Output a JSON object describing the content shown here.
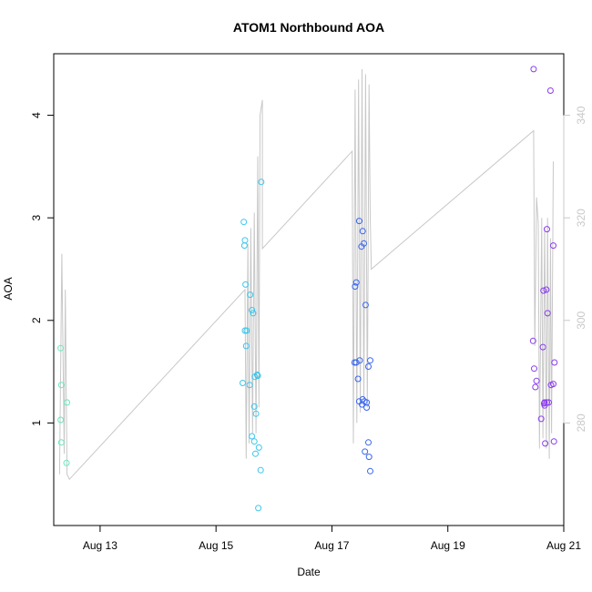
{
  "chart_data": {
    "type": "scatter",
    "title": "ATOM1 Northbound AOA",
    "xlabel": "Date",
    "ylabel": "AOA",
    "x_range_days": [
      12.2,
      21.0
    ],
    "y_range": [
      0.0,
      4.6
    ],
    "y2_range": [
      260,
      352
    ],
    "x_ticks": [
      {
        "value": 13,
        "label": "Aug 13"
      },
      {
        "value": 15,
        "label": "Aug 15"
      },
      {
        "value": 17,
        "label": "Aug 17"
      },
      {
        "value": 19,
        "label": "Aug 19"
      },
      {
        "value": 21,
        "label": "Aug 21"
      }
    ],
    "y_ticks": [
      {
        "value": 1,
        "label": "1"
      },
      {
        "value": 2,
        "label": "2"
      },
      {
        "value": 3,
        "label": "3"
      },
      {
        "value": 4,
        "label": "4"
      }
    ],
    "y2_ticks": [
      {
        "value": 280,
        "label": "280"
      },
      {
        "value": 300,
        "label": "300"
      },
      {
        "value": 320,
        "label": "320"
      },
      {
        "value": 340,
        "label": "340"
      }
    ],
    "grid": false,
    "legend": "none",
    "series": [
      {
        "color": "#66e8c0",
        "points": [
          [
            12.32,
            1.73
          ],
          [
            12.33,
            1.37
          ],
          [
            12.32,
            1.03
          ],
          [
            12.33,
            0.81
          ],
          [
            12.43,
            1.2
          ],
          [
            12.42,
            0.61
          ]
        ]
      },
      {
        "color": "#3cc6ec",
        "points": [
          [
            15.48,
            2.96
          ],
          [
            15.5,
            2.78
          ],
          [
            15.49,
            2.73
          ],
          [
            15.51,
            2.35
          ],
          [
            15.59,
            2.25
          ],
          [
            15.62,
            2.1
          ],
          [
            15.64,
            2.07
          ],
          [
            15.5,
            1.9
          ],
          [
            15.53,
            1.9
          ],
          [
            15.52,
            1.75
          ],
          [
            15.46,
            1.39
          ],
          [
            15.58,
            1.37
          ],
          [
            15.67,
            1.45
          ],
          [
            15.71,
            1.47
          ],
          [
            15.72,
            1.46
          ],
          [
            15.66,
            1.16
          ],
          [
            15.69,
            1.09
          ],
          [
            15.62,
            0.87
          ],
          [
            15.66,
            0.82
          ],
          [
            15.74,
            0.76
          ],
          [
            15.68,
            0.7
          ],
          [
            15.78,
            3.35
          ],
          [
            15.77,
            0.54
          ],
          [
            15.73,
            0.17
          ]
        ]
      },
      {
        "color": "#3a66ee",
        "points": [
          [
            17.47,
            2.97
          ],
          [
            17.53,
            2.87
          ],
          [
            17.55,
            2.75
          ],
          [
            17.51,
            2.72
          ],
          [
            17.42,
            2.37
          ],
          [
            17.4,
            2.33
          ],
          [
            17.58,
            2.15
          ],
          [
            17.39,
            1.59
          ],
          [
            17.42,
            1.59
          ],
          [
            17.48,
            1.61
          ],
          [
            17.66,
            1.61
          ],
          [
            17.63,
            1.55
          ],
          [
            17.45,
            1.43
          ],
          [
            17.47,
            1.21
          ],
          [
            17.53,
            1.23
          ],
          [
            17.56,
            1.21
          ],
          [
            17.6,
            1.2
          ],
          [
            17.52,
            1.18
          ],
          [
            17.6,
            1.15
          ],
          [
            17.63,
            0.81
          ],
          [
            17.57,
            0.72
          ],
          [
            17.64,
            0.67
          ],
          [
            17.66,
            0.53
          ]
        ]
      },
      {
        "color": "#8a3cee",
        "points": [
          [
            20.48,
            4.45
          ],
          [
            20.77,
            4.24
          ],
          [
            20.71,
            2.89
          ],
          [
            20.82,
            2.73
          ],
          [
            20.65,
            2.29
          ],
          [
            20.7,
            2.3
          ],
          [
            20.72,
            2.07
          ],
          [
            20.47,
            1.8
          ],
          [
            20.64,
            1.74
          ],
          [
            20.84,
            1.59
          ],
          [
            20.49,
            1.53
          ],
          [
            20.53,
            1.41
          ],
          [
            20.51,
            1.35
          ],
          [
            20.82,
            1.38
          ],
          [
            20.78,
            1.37
          ],
          [
            20.67,
            1.2
          ],
          [
            20.71,
            1.2
          ],
          [
            20.66,
            1.19
          ],
          [
            20.74,
            1.2
          ],
          [
            20.67,
            1.17
          ],
          [
            20.61,
            1.04
          ],
          [
            20.68,
            0.8
          ],
          [
            20.83,
            0.82
          ]
        ]
      }
    ],
    "secondary_line": {
      "color": "#c8c8c8",
      "axis": "right",
      "points": [
        [
          12.3,
          270
        ],
        [
          12.34,
          313
        ],
        [
          12.38,
          274
        ],
        [
          12.4,
          306
        ],
        [
          12.43,
          270
        ],
        [
          12.47,
          269
        ],
        [
          15.5,
          306
        ],
        [
          15.52,
          273
        ],
        [
          15.55,
          315
        ],
        [
          15.57,
          276
        ],
        [
          15.6,
          318
        ],
        [
          15.63,
          278
        ],
        [
          15.66,
          321
        ],
        [
          15.69,
          278
        ],
        [
          15.72,
          332
        ],
        [
          15.74,
          283
        ],
        [
          15.76,
          340
        ],
        [
          15.8,
          343
        ],
        [
          15.8,
          314
        ],
        [
          17.35,
          333
        ],
        [
          17.37,
          276
        ],
        [
          17.4,
          345
        ],
        [
          17.43,
          280
        ],
        [
          17.46,
          347
        ],
        [
          17.49,
          282
        ],
        [
          17.52,
          349
        ],
        [
          17.55,
          283
        ],
        [
          17.58,
          348
        ],
        [
          17.61,
          283
        ],
        [
          17.64,
          346
        ],
        [
          17.66,
          320
        ],
        [
          17.68,
          310
        ],
        [
          20.48,
          337
        ],
        [
          20.5,
          295
        ],
        [
          20.53,
          324
        ],
        [
          20.56,
          319
        ],
        [
          20.58,
          275
        ],
        [
          20.62,
          320
        ],
        [
          20.64,
          277
        ],
        [
          20.67,
          318
        ],
        [
          20.7,
          275
        ],
        [
          20.72,
          320
        ],
        [
          20.75,
          273
        ],
        [
          20.77,
          316
        ],
        [
          20.79,
          278
        ],
        [
          20.82,
          331
        ]
      ]
    }
  }
}
